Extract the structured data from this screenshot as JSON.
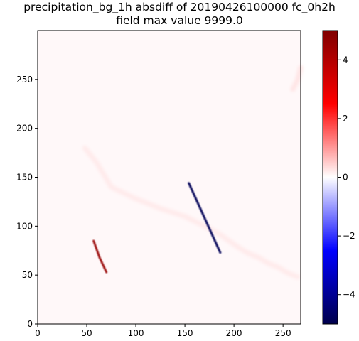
{
  "chart_data": {
    "type": "heatmap",
    "title_line1": "precipitation_bg_1h absdiff of 20190426100000 fc_0h2h",
    "title_line2": "field max value 9999.0",
    "xlabel": "",
    "ylabel": "",
    "xlim": [
      0,
      268
    ],
    "ylim": [
      0,
      300
    ],
    "x_ticks": [
      0,
      50,
      100,
      150,
      200,
      250
    ],
    "y_ticks": [
      0,
      50,
      100,
      150,
      200,
      250
    ],
    "colorbar": {
      "colormap": "seismic",
      "range": [
        -5,
        5
      ],
      "ticks": [
        4,
        2,
        0,
        -2,
        -4
      ],
      "tick_labels": [
        "4",
        "2",
        "0",
        "−2",
        "−4"
      ],
      "colors": {
        "low": "#00004c",
        "mid": "#ffffff",
        "high": "#800000"
      }
    },
    "features": [
      {
        "x": [
          48,
          60,
          75,
          100,
          125,
          150,
          170,
          185,
          195,
          205,
          215,
          225,
          235,
          245,
          255,
          265
        ],
        "y": [
          180,
          165,
          140,
          128,
          118,
          110,
          100,
          92,
          85,
          78,
          72,
          68,
          62,
          58,
          52,
          48
        ],
        "value": 0.6
      },
      {
        "x": [
          260,
          265,
          268
        ],
        "y": [
          240,
          250,
          262
        ],
        "value": 0.8
      },
      {
        "x": [
          57,
          63,
          70
        ],
        "y": [
          85,
          68,
          53
        ],
        "value": 4.5
      },
      {
        "x": [
          154,
          186
        ],
        "y": [
          144,
          73
        ],
        "value": -4.8
      }
    ]
  }
}
